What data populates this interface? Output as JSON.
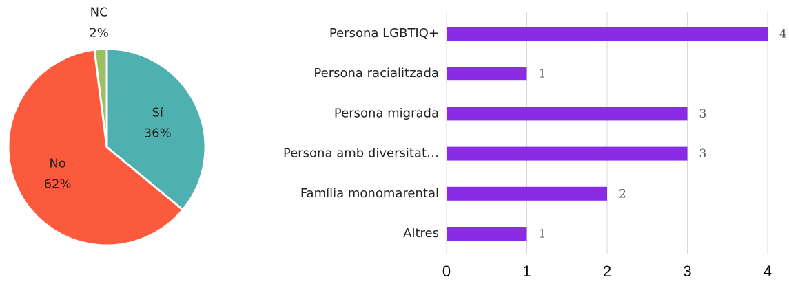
{
  "chart_data": [
    {
      "type": "pie",
      "categories": [
        "Sí",
        "No",
        "NC"
      ],
      "values": [
        36,
        62,
        2
      ],
      "value_labels": [
        "36%",
        "62%",
        "2%"
      ],
      "colors": [
        "#4fb0b0",
        "#fb5a3c",
        "#9bc063"
      ]
    },
    {
      "type": "hbar",
      "categories": [
        "Persona LGBTIQ+",
        "Persona racialitzada",
        "Persona migrada",
        "Persona amb diversitat…",
        "Família monomarental",
        "Altres"
      ],
      "values": [
        4,
        1,
        3,
        3,
        2,
        1
      ],
      "color": "#8a2be6",
      "xlim": [
        0,
        4
      ],
      "xticks": [
        0,
        1,
        2,
        3,
        4
      ],
      "grid": true
    }
  ]
}
